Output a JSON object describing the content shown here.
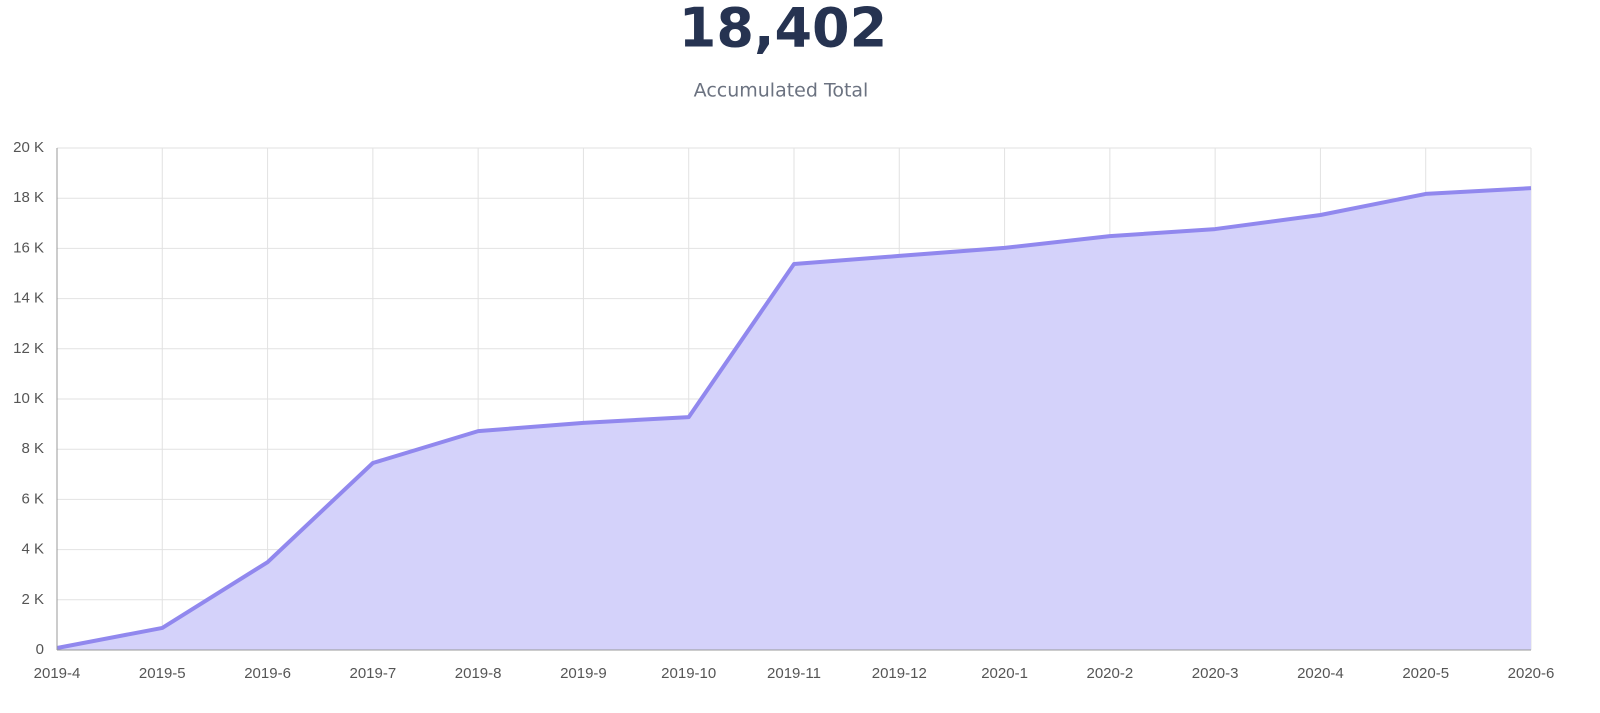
{
  "chart_data": {
    "type": "area",
    "title": "18,402",
    "subtitle": "Accumulated Total",
    "categories": [
      "2019-4",
      "2019-5",
      "2019-6",
      "2019-7",
      "2019-8",
      "2019-9",
      "2019-10",
      "2019-11",
      "2019-12",
      "2020-1",
      "2020-2",
      "2020-3",
      "2020-4",
      "2020-5",
      "2020-6"
    ],
    "values": [
      80,
      880,
      3500,
      7450,
      8720,
      9050,
      9280,
      15380,
      15700,
      16020,
      16490,
      16770,
      17330,
      18170,
      18402
    ],
    "line_color": "#9188ee",
    "fill_color": "#d4d2fa",
    "ylim": [
      0,
      20000
    ],
    "yticks": [
      0,
      {
        "value": 2000,
        "label": "2 K"
      },
      {
        "value": 4000,
        "label": "4 K"
      },
      {
        "value": 6000,
        "label": "6 K"
      },
      {
        "value": 8000,
        "label": "8 K"
      },
      {
        "value": 10000,
        "label": "10 K"
      },
      {
        "value": 12000,
        "label": "12 K"
      },
      {
        "value": 14000,
        "label": "14 K"
      },
      {
        "value": 16000,
        "label": "16 K"
      },
      {
        "value": 18000,
        "label": "18 K"
      },
      {
        "value": 20000,
        "label": "20 K"
      }
    ],
    "grid": true
  }
}
